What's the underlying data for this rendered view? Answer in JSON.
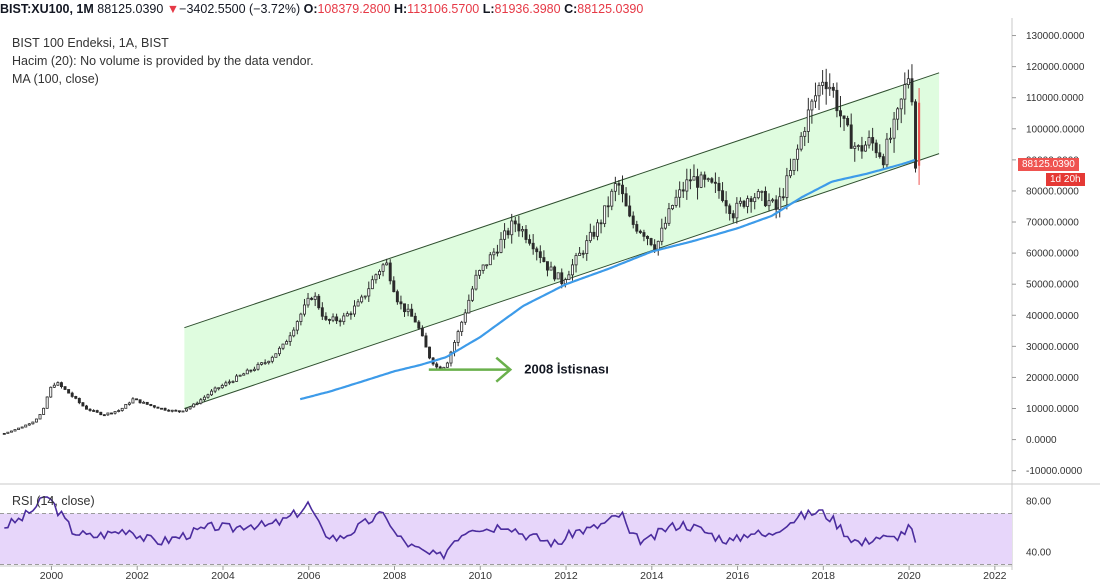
{
  "header": {
    "symbol": "BIST:XU100, 1M",
    "last": "88125.0390",
    "arrow": "▼",
    "change": "−3402.5500 (−3.72%)",
    "o_key": "O:",
    "o": "108379.2800",
    "h_key": "H:",
    "h": "113106.5700",
    "l_key": "L:",
    "l": "81936.3980",
    "c_key": "C:",
    "c": "88125.0390"
  },
  "legend": {
    "line1": "BIST 100 Endeksi, 1A, BIST",
    "line2": "Hacim (20): No volume is provided by the data vendor.",
    "line3": "MA (100, close)"
  },
  "price_tag": {
    "value": "88125.0390",
    "countdown": "1d 20h"
  },
  "annotation": {
    "text": "2008 İstisnası"
  },
  "rsi_label": "RSI (14, close)",
  "colors": {
    "up": "#26a69a",
    "down": "#ef5350",
    "candle_dark": "#2b2b2b",
    "ma": "#3d9be9",
    "channel_fill": "#dcfcdc",
    "rsi_line": "#4b2c9e",
    "rsi_band": "#e7d6fa",
    "arrow": "#6ab04c",
    "tag_red": "#ef5350",
    "tag_red_dark": "#e53935"
  },
  "chart_data": [
    {
      "type": "candlestick",
      "title": "BIST 100 Endeksi, 1A, BIST",
      "x_ticks": [
        "2000",
        "2002",
        "2004",
        "2006",
        "2008",
        "2010",
        "2012",
        "2014",
        "2016",
        "2018",
        "2020",
        "2022"
      ],
      "xlim": [
        1998.8,
        2022.4
      ],
      "ylim": [
        -13000,
        135000
      ],
      "y_ticks": [
        "130000.0000",
        "120000.0000",
        "110000.0000",
        "100000.0000",
        "90000.0000",
        "80000.0000",
        "70000.0000",
        "60000.0000",
        "50000.0000",
        "40000.0000",
        "30000.0000",
        "20000.0000",
        "10000.0000",
        "0.0000",
        "-10000.0000"
      ],
      "price_keypoints": [
        [
          1998.9,
          2000
        ],
        [
          1999.3,
          4000
        ],
        [
          1999.6,
          6000
        ],
        [
          1999.8,
          9000
        ],
        [
          1999.95,
          16000
        ],
        [
          2000.1,
          18500
        ],
        [
          2000.4,
          15000
        ],
        [
          2000.8,
          10000
        ],
        [
          2001.2,
          8000
        ],
        [
          2001.6,
          9500
        ],
        [
          2001.9,
          13000
        ],
        [
          2002.3,
          11000
        ],
        [
          2002.7,
          9500
        ],
        [
          2003.0,
          9000
        ],
        [
          2003.3,
          11000
        ],
        [
          2003.8,
          16000
        ],
        [
          2004.2,
          19000
        ],
        [
          2004.6,
          22000
        ],
        [
          2005.0,
          25000
        ],
        [
          2005.4,
          30000
        ],
        [
          2005.8,
          40000
        ],
        [
          2006.1,
          47000
        ],
        [
          2006.4,
          38000
        ],
        [
          2006.8,
          39000
        ],
        [
          2007.2,
          44000
        ],
        [
          2007.6,
          54000
        ],
        [
          2007.8,
          57000
        ],
        [
          2008.1,
          44000
        ],
        [
          2008.5,
          38000
        ],
        [
          2008.8,
          27000
        ],
        [
          2009.0,
          23000
        ],
        [
          2009.2,
          24000
        ],
        [
          2009.5,
          35000
        ],
        [
          2009.9,
          52000
        ],
        [
          2010.3,
          60000
        ],
        [
          2010.8,
          70000
        ],
        [
          2011.2,
          64000
        ],
        [
          2011.6,
          55000
        ],
        [
          2011.9,
          51000
        ],
        [
          2012.3,
          59000
        ],
        [
          2012.8,
          70000
        ],
        [
          2013.2,
          83000
        ],
        [
          2013.5,
          70000
        ],
        [
          2013.8,
          67000
        ],
        [
          2014.1,
          62000
        ],
        [
          2014.5,
          76000
        ],
        [
          2014.9,
          84000
        ],
        [
          2015.3,
          82000
        ],
        [
          2015.6,
          80000
        ],
        [
          2015.9,
          73000
        ],
        [
          2016.3,
          79000
        ],
        [
          2016.7,
          77000
        ],
        [
          2016.9,
          74000
        ],
        [
          2017.3,
          88000
        ],
        [
          2017.6,
          103000
        ],
        [
          2017.8,
          110000
        ],
        [
          2018.0,
          117000
        ],
        [
          2018.2,
          113000
        ],
        [
          2018.5,
          100000
        ],
        [
          2018.8,
          93000
        ],
        [
          2019.1,
          96000
        ],
        [
          2019.4,
          91000
        ],
        [
          2019.7,
          102000
        ],
        [
          2019.9,
          113000
        ],
        [
          2020.0,
          118000
        ],
        [
          2020.1,
          108000
        ],
        [
          2020.15,
          88125
        ]
      ],
      "ma_100_keypoints": [
        [
          2005.8,
          13000
        ],
        [
          2006.5,
          15500
        ],
        [
          2007.2,
          18500
        ],
        [
          2008.0,
          22000
        ],
        [
          2008.6,
          24000
        ],
        [
          2009.2,
          26500
        ],
        [
          2010.0,
          33000
        ],
        [
          2011.0,
          43000
        ],
        [
          2012.0,
          50000
        ],
        [
          2013.0,
          55000
        ],
        [
          2014.0,
          60500
        ],
        [
          2015.0,
          64000
        ],
        [
          2016.0,
          68000
        ],
        [
          2016.8,
          72000
        ],
        [
          2017.5,
          78000
        ],
        [
          2018.2,
          83000
        ],
        [
          2019.0,
          85500
        ],
        [
          2019.8,
          88500
        ],
        [
          2020.15,
          90000
        ]
      ],
      "channel": {
        "upper": [
          [
            2003.1,
            36000
          ],
          [
            2020.7,
            118000
          ]
        ],
        "lower": [
          [
            2003.1,
            10000
          ],
          [
            2020.7,
            92000
          ]
        ]
      },
      "last_value": 88125.039
    },
    {
      "type": "line",
      "title": "RSI (14, close)",
      "y_ticks": [
        "80.00",
        "40.00"
      ],
      "ylim": [
        32,
        90
      ],
      "band": [
        30,
        70
      ],
      "rsi_keypoints": [
        [
          1998.9,
          60
        ],
        [
          1999.3,
          66
        ],
        [
          1999.6,
          74
        ],
        [
          1999.9,
          84
        ],
        [
          2000.2,
          70
        ],
        [
          2000.5,
          56
        ],
        [
          2000.9,
          52
        ],
        [
          2001.3,
          54
        ],
        [
          2001.8,
          58
        ],
        [
          2002.2,
          50
        ],
        [
          2002.6,
          48
        ],
        [
          2003.0,
          52
        ],
        [
          2003.4,
          56
        ],
        [
          2003.8,
          60
        ],
        [
          2004.2,
          58
        ],
        [
          2004.6,
          62
        ],
        [
          2005.0,
          60
        ],
        [
          2005.4,
          64
        ],
        [
          2005.8,
          72
        ],
        [
          2006.0,
          78
        ],
        [
          2006.3,
          56
        ],
        [
          2006.7,
          50
        ],
        [
          2007.1,
          58
        ],
        [
          2007.5,
          66
        ],
        [
          2007.8,
          70
        ],
        [
          2008.0,
          54
        ],
        [
          2008.4,
          44
        ],
        [
          2008.8,
          38
        ],
        [
          2009.1,
          36
        ],
        [
          2009.4,
          50
        ],
        [
          2009.8,
          60
        ],
        [
          2010.2,
          58
        ],
        [
          2010.6,
          62
        ],
        [
          2011.0,
          54
        ],
        [
          2011.4,
          50
        ],
        [
          2011.8,
          46
        ],
        [
          2012.2,
          56
        ],
        [
          2012.6,
          58
        ],
        [
          2013.0,
          64
        ],
        [
          2013.3,
          70
        ],
        [
          2013.5,
          52
        ],
        [
          2013.9,
          48
        ],
        [
          2014.3,
          58
        ],
        [
          2014.7,
          62
        ],
        [
          2015.1,
          58
        ],
        [
          2015.5,
          52
        ],
        [
          2015.9,
          48
        ],
        [
          2016.3,
          56
        ],
        [
          2016.7,
          52
        ],
        [
          2017.1,
          62
        ],
        [
          2017.5,
          68
        ],
        [
          2017.9,
          72
        ],
        [
          2018.2,
          66
        ],
        [
          2018.6,
          52
        ],
        [
          2018.9,
          46
        ],
        [
          2019.2,
          52
        ],
        [
          2019.6,
          50
        ],
        [
          2019.9,
          56
        ],
        [
          2020.05,
          60
        ],
        [
          2020.15,
          44
        ]
      ]
    }
  ]
}
